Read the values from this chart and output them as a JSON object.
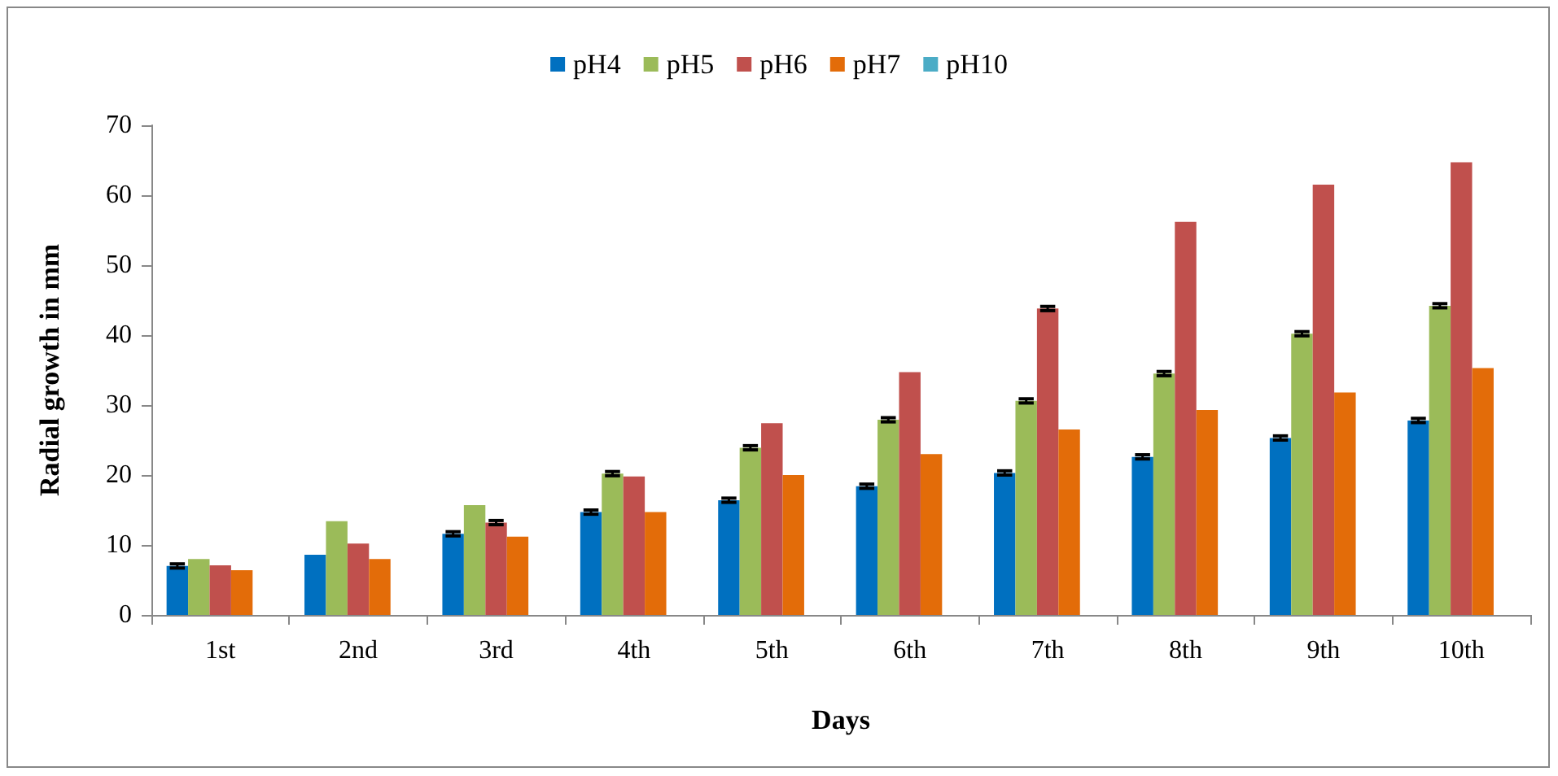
{
  "chart_data": {
    "type": "bar",
    "xlabel": "Days",
    "ylabel": "Radial growth in mm",
    "categories": [
      "1st",
      "2nd",
      "3rd",
      "4th",
      "5th",
      "6th",
      "7th",
      "8th",
      "9th",
      "10th"
    ],
    "series": [
      {
        "name": "pH4",
        "color": "#0070c0",
        "values": [
          7.0,
          8.6,
          11.6,
          14.7,
          16.4,
          18.4,
          20.3,
          22.6,
          25.3,
          27.8
        ],
        "errors": [
          0.3,
          null,
          0.3,
          0.3,
          0.3,
          0.3,
          0.3,
          0.3,
          0.3,
          0.3
        ]
      },
      {
        "name": "pH5",
        "color": "#9bbb59",
        "values": [
          8.0,
          13.4,
          15.7,
          20.2,
          23.9,
          27.9,
          30.6,
          34.5,
          40.2,
          44.2
        ],
        "errors": [
          null,
          null,
          null,
          0.3,
          0.3,
          0.3,
          0.3,
          0.3,
          0.3,
          0.3
        ]
      },
      {
        "name": "pH6",
        "color": "#c0504d",
        "values": [
          7.1,
          10.2,
          13.2,
          19.8,
          27.4,
          34.7,
          43.8,
          56.2,
          61.5,
          64.7
        ],
        "errors": [
          null,
          null,
          0.3,
          null,
          null,
          null,
          0.3,
          null,
          null,
          null
        ]
      },
      {
        "name": "pH7",
        "color": "#e36c09",
        "values": [
          6.4,
          8.0,
          11.2,
          14.7,
          20.0,
          23.0,
          26.5,
          29.3,
          31.8,
          35.3
        ]
      },
      {
        "name": "pH10",
        "color": "#4bacc6",
        "values": [
          null,
          null,
          null,
          null,
          null,
          null,
          null,
          null,
          null,
          null
        ]
      }
    ],
    "ylim": [
      0,
      70
    ],
    "yticks": [
      0,
      10,
      20,
      30,
      40,
      50,
      60,
      70
    ],
    "grid": false,
    "legend": "top"
  }
}
